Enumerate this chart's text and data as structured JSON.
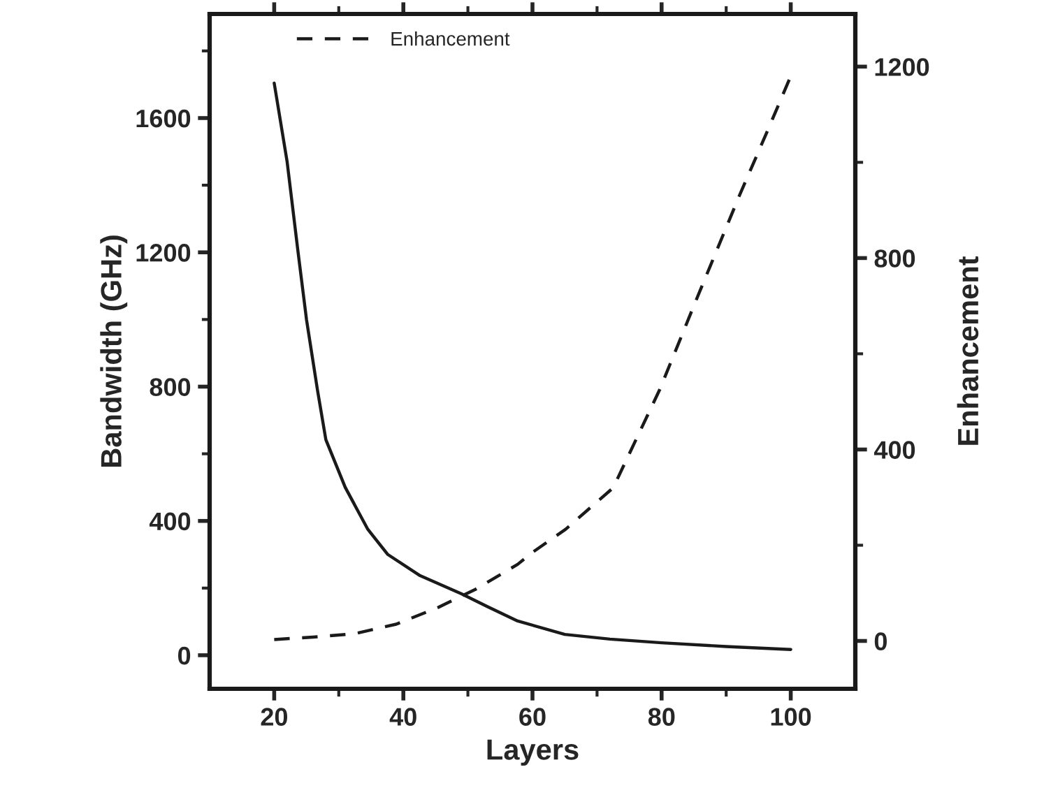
{
  "chart_data": {
    "type": "line",
    "xlabel": "Layers",
    "ylabel": "Bandwidth (GHz)",
    "y2label": "Enhancement",
    "series": [
      {
        "color": "#1a1a1a",
        "line_style": "solid",
        "x": [
          20,
          22,
          23.7,
          25,
          26.7,
          28,
          31,
          34.5,
          37.6,
          42.6,
          49,
          53,
          57.7,
          65,
          72,
          80,
          90,
          100
        ],
        "values": [
          1704,
          1470,
          1200,
          1000,
          790,
          642,
          500,
          375,
          300,
          237,
          183,
          145,
          102,
          62,
          48,
          37,
          26,
          17
        ]
      },
      {
        "name": "Enhancement",
        "axis": "y2",
        "color": "#1a1a1a",
        "line_style": "dashed",
        "x": [
          20,
          26,
          32.4,
          38.9,
          45.4,
          51.2,
          57.7,
          60.1,
          65.1,
          72.5,
          79.7,
          85.5,
          92,
          96.4,
          100
        ],
        "values": [
          3,
          8,
          15,
          35,
          70,
          108,
          160,
          186,
          233,
          320,
          525,
          717,
          929,
          1066,
          1180
        ]
      }
    ],
    "xlim": [
      10,
      110
    ],
    "xticks": [
      20,
      {
        "value": 30,
        "label": null
      },
      40,
      {
        "value": 50,
        "label": null
      },
      60,
      {
        "value": 70,
        "label": null
      },
      80,
      {
        "value": 90,
        "label": null
      },
      100
    ],
    "ylim": [
      -100,
      1910
    ],
    "yticks": [
      0,
      {
        "value": 200,
        "label": null
      },
      400,
      {
        "value": 600,
        "label": null
      },
      800,
      {
        "value": 1000,
        "label": null
      },
      1200,
      {
        "value": 1400,
        "label": null
      },
      1600,
      {
        "value": 1800,
        "label": null
      }
    ],
    "y2lim": [
      -100,
      1310
    ],
    "y2ticks": [
      0,
      {
        "value": 200,
        "label": null
      },
      400,
      {
        "value": 600,
        "label": null
      },
      800,
      {
        "value": 1000,
        "label": null
      },
      1200
    ],
    "legend": "top",
    "grid": false
  }
}
